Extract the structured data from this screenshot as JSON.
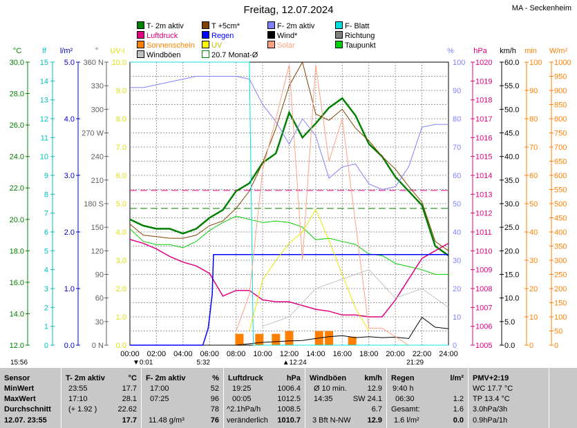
{
  "header": {
    "title": "Freitag, 12.07.2024",
    "station": "MA - Seckenheim"
  },
  "legend": [
    {
      "label": "T- 2m aktiv",
      "color": "#008000"
    },
    {
      "label": "T +5cm*",
      "color": "#804000"
    },
    {
      "label": "F- 2m aktiv",
      "color": "#8080ff"
    },
    {
      "label": "F- Blatt",
      "color": "#00e0e0"
    },
    {
      "label": "Luftdruck",
      "color": "#e00080"
    },
    {
      "label": "Regen",
      "color": "#0000ff"
    },
    {
      "label": "Wind*",
      "color": "#000000"
    },
    {
      "label": "Richtung",
      "color": "#808080"
    },
    {
      "label": "Sonnenschein",
      "color": "#ff8000"
    },
    {
      "label": "UV",
      "color": "#ffff00"
    },
    {
      "label": "Solar",
      "color": "#ffa080"
    },
    {
      "label": "Taupunkt",
      "color": "#00d000"
    },
    {
      "label": "Windböen",
      "color": "#c0c0c0"
    },
    {
      "label": "20.7 Monat-Ø",
      "color": "#008000"
    }
  ],
  "axes": {
    "temp": {
      "unit": "°C",
      "color": "#008000",
      "ticks": [
        "12.0",
        "14.0",
        "16.0",
        "18.0",
        "20.0",
        "22.0",
        "24.0",
        "26.0",
        "28.0",
        "30.0"
      ]
    },
    "leaf": {
      "unit": "lf",
      "color": "#00c0c0",
      "ticks": [
        "0",
        "1",
        "2",
        "3",
        "4",
        "5",
        "6",
        "7",
        "8",
        "9",
        "10",
        "11",
        "12",
        "13",
        "14",
        "15"
      ]
    },
    "rain": {
      "unit": "l/m²",
      "color": "#0000c0",
      "ticks": [
        "0.0",
        "1.0",
        "2.0",
        "3.0",
        "4.0",
        "5.0"
      ]
    },
    "dir": {
      "unit": "°",
      "color": "#606060",
      "ticks": [
        "0 N",
        "30",
        "60",
        "90",
        "120",
        "150",
        "180 S",
        "210",
        "240",
        "270 W",
        "300",
        "330",
        "360 N"
      ]
    },
    "uv": {
      "unit": "UV-I",
      "color": "#e0e000",
      "ticks": [
        "0.0",
        "1.0",
        "2.0",
        "3.0",
        "4.0",
        "5.0",
        "6.0",
        "7.0",
        "8.0",
        "9.0",
        "10.0"
      ]
    },
    "hum": {
      "unit": "%",
      "color": "#8080ff",
      "ticks": [
        "0",
        "10",
        "20",
        "30",
        "40",
        "50",
        "60",
        "70",
        "80",
        "90",
        "100"
      ]
    },
    "press": {
      "unit": "hPa",
      "color": "#e00080",
      "ticks": [
        "1005",
        "1006",
        "1007",
        "1008",
        "1009",
        "1010",
        "1011",
        "1012",
        "1013",
        "1014",
        "1015",
        "1016",
        "1017",
        "1018",
        "1019",
        "1020"
      ]
    },
    "wind": {
      "unit": "km/h",
      "color": "#000000",
      "ticks": [
        "0.0",
        "5.0",
        "10.0",
        "15.0",
        "20.0",
        "25.0",
        "30.0",
        "35.0",
        "40.0",
        "45.0",
        "50.0",
        "55.0",
        "60.0"
      ]
    },
    "sun": {
      "unit": "min",
      "color": "#ff8000",
      "ticks": [
        "0",
        "10",
        "20",
        "30",
        "40",
        "50",
        "60",
        "70",
        "80",
        "90",
        "100"
      ]
    },
    "solar": {
      "unit": "W/m²",
      "color": "#ff8000",
      "ticks": [
        "0",
        "50",
        "100",
        "150",
        "200",
        "250",
        "300",
        "350",
        "400",
        "450",
        "500",
        "550",
        "600",
        "650",
        "700",
        "750",
        "800",
        "850",
        "900",
        "950",
        "1000"
      ]
    },
    "time": [
      "00:00",
      "02:00",
      "04:00",
      "06:00",
      "08:00",
      "10:00",
      "12:00",
      "14:00",
      "16:00",
      "18:00",
      "20:00",
      "22:00",
      "24:00"
    ]
  },
  "events": {
    "sunrise": "5:32",
    "sunset": "21:29",
    "moonset": "0:01",
    "moonrise": "12:24",
    "moonset_prev": "15:56"
  },
  "chart_data": {
    "type": "line",
    "x_unit": "hour",
    "xlim": [
      0,
      24
    ],
    "series": [
      {
        "name": "T- 2m aktiv",
        "axis": "temp",
        "x": [
          0,
          1,
          2,
          3,
          4,
          5,
          6,
          7,
          8,
          9,
          10,
          11,
          12,
          13,
          14,
          15,
          16,
          17,
          18,
          19,
          20,
          21,
          22,
          23,
          24
        ],
        "values": [
          20.0,
          19.6,
          19.4,
          19.4,
          19.1,
          19.4,
          20.1,
          20.6,
          21.8,
          22.3,
          23.6,
          24.2,
          26.8,
          25.2,
          26.1,
          27.1,
          27.7,
          26.6,
          24.8,
          24.0,
          22.7,
          21.8,
          20.9,
          18.3,
          17.7
        ]
      },
      {
        "name": "T +5cm*",
        "axis": "temp",
        "x": [
          0,
          1,
          2,
          3,
          4,
          5,
          6,
          7,
          8,
          9,
          10,
          11,
          12,
          13,
          14,
          15,
          16,
          17,
          18,
          19,
          20,
          21,
          22,
          23,
          24
        ],
        "values": [
          19.7,
          19.0,
          18.9,
          18.8,
          18.8,
          19.0,
          19.6,
          19.9,
          20.7,
          21.8,
          23.6,
          25.8,
          28.5,
          30.0,
          26.7,
          26.3,
          27.0,
          25.8,
          25.0,
          24.0,
          23.2,
          22.1,
          21.1,
          18.6,
          18.0
        ]
      },
      {
        "name": "Taupunkt",
        "axis": "temp",
        "x": [
          0,
          1,
          2,
          3,
          4,
          5,
          6,
          7,
          8,
          9,
          10,
          11,
          12,
          13,
          14,
          15,
          16,
          17,
          18,
          19,
          20,
          21,
          22,
          23,
          24
        ],
        "values": [
          19.4,
          18.6,
          18.4,
          18.4,
          18.2,
          18.6,
          19.3,
          19.8,
          20.2,
          20.0,
          19.8,
          19.9,
          19.8,
          19.5,
          18.7,
          18.8,
          18.6,
          18.4,
          17.8,
          17.7,
          17.2,
          17.0,
          16.8,
          16.5,
          16.5
        ]
      },
      {
        "name": "F- 2m aktiv",
        "axis": "hum",
        "x": [
          0,
          1,
          2,
          3,
          4,
          5,
          6,
          7,
          8,
          9,
          10,
          11,
          12,
          13,
          14,
          15,
          16,
          17,
          18,
          19,
          20,
          21,
          22,
          23,
          24
        ],
        "values": [
          91,
          91,
          92,
          93,
          94,
          95,
          95,
          95,
          95,
          94,
          85,
          79,
          71,
          80,
          74,
          59,
          63,
          64,
          57,
          55,
          56,
          63,
          77,
          78,
          78
        ]
      },
      {
        "name": "Luftdruck",
        "axis": "press",
        "x": [
          0,
          1,
          2,
          3,
          4,
          5,
          6,
          7,
          8,
          9,
          10,
          11,
          12,
          13,
          14,
          15,
          16,
          17,
          18,
          19,
          20,
          21,
          22,
          23,
          24
        ],
        "values": [
          1010.6,
          1010.4,
          1010.1,
          1009.7,
          1009.4,
          1009.2,
          1008.8,
          1007.6,
          1007.9,
          1007.9,
          1007.4,
          1007.3,
          1007.3,
          1007.1,
          1006.9,
          1006.8,
          1006.6,
          1006.6,
          1006.5,
          1006.5,
          1007.4,
          1008.5,
          1009.6,
          1010.0,
          1010.4
        ]
      },
      {
        "name": "Wind*",
        "axis": "wind",
        "x": [
          0,
          4,
          8,
          10,
          12,
          13,
          14,
          15,
          16,
          17,
          18,
          19,
          20,
          21,
          22,
          23,
          24
        ],
        "values": [
          0,
          0,
          0,
          0.6,
          0.9,
          1.0,
          1.4,
          1.8,
          2.0,
          1.6,
          1.8,
          1.6,
          1.7,
          1.4,
          5.9,
          3.8,
          3.5
        ]
      },
      {
        "name": "Regen",
        "axis": "rain",
        "x": [
          0,
          5.5,
          5.9,
          6.0,
          6.2,
          6.3,
          24
        ],
        "values": [
          0,
          0,
          0.3,
          0.5,
          0.9,
          1.6,
          1.6
        ]
      },
      {
        "name": "F- Blatt",
        "axis": "leaf",
        "x": [
          0,
          9,
          9.3,
          24
        ],
        "values": [
          15,
          15,
          0,
          0
        ]
      },
      {
        "name": "Solar",
        "axis": "solar",
        "x": [
          8,
          9,
          10,
          11,
          12,
          13,
          14,
          15,
          16,
          17,
          18,
          19,
          20,
          21
        ],
        "values": [
          50,
          180,
          620,
          800,
          990,
          300,
          990,
          650,
          800,
          430,
          60,
          60,
          30,
          0
        ]
      },
      {
        "name": "UV",
        "axis": "uv",
        "x": [
          9,
          10,
          11,
          12,
          13,
          14,
          15,
          16,
          17,
          18
        ],
        "values": [
          0.5,
          2.3,
          3.0,
          3.6,
          4.0,
          4.8,
          3.7,
          2.5,
          1.3,
          0.5
        ]
      },
      {
        "name": "Windböen",
        "axis": "wind",
        "x": [
          10,
          12,
          14,
          16,
          18,
          20,
          22,
          24
        ],
        "values": [
          4,
          6,
          12,
          14,
          16,
          10,
          12,
          8
        ]
      }
    ],
    "reference_lines": [
      {
        "name": "20.7 Monat-Ø",
        "axis": "temp",
        "value": 20.7
      },
      {
        "name": "Luftdruck-Ø",
        "axis": "press",
        "value": 1013.2
      }
    ],
    "sunshine_minutes": [
      {
        "hour": 8.25,
        "minutes": 4
      },
      {
        "hour": 9.75,
        "minutes": 4
      },
      {
        "hour": 11,
        "minutes": 4
      },
      {
        "hour": 12,
        "minutes": 5
      },
      {
        "hour": 14.25,
        "minutes": 5
      },
      {
        "hour": 15,
        "minutes": 5
      },
      {
        "hour": 16.75,
        "minutes": 3
      }
    ],
    "grid": true
  },
  "table": {
    "sensor": {
      "h": "Sensor",
      "rows": [
        "MinWert",
        "MaxWert",
        "Durchschnitt",
        "12.07.  23:55"
      ]
    },
    "temp": {
      "h": "T- 2m aktiv",
      "u": "°C",
      "rows": [
        [
          "23:55",
          "17.7"
        ],
        [
          "17:10",
          "28.1"
        ],
        [
          "(+ 1.92 )",
          "22.62"
        ],
        [
          "",
          "17.7"
        ]
      ]
    },
    "hum": {
      "h": "F- 2m aktiv",
      "u": "%",
      "rows": [
        [
          "17:00",
          "52"
        ],
        [
          "07:25",
          "96"
        ],
        [
          "",
          "78"
        ],
        [
          "11.48 g/m³",
          "76"
        ]
      ]
    },
    "press": {
      "h": "Luftdruck",
      "u": "hPa",
      "rows": [
        [
          "19:25",
          "1006.4"
        ],
        [
          "00:05",
          "1012.5"
        ],
        [
          "^2.1hPa/h",
          "1008.5"
        ],
        [
          "veränderlich",
          "1010.7"
        ]
      ]
    },
    "wind": {
      "h": "Windböen",
      "u": "km/h",
      "rows": [
        [
          "Ø 10 min.",
          "12.9"
        ],
        [
          "14:35",
          "SW 24.1"
        ],
        [
          "",
          "6.7"
        ],
        [
          "3 Bft N-NW",
          "12.9"
        ]
      ]
    },
    "rain": {
      "h": "Regen",
      "u": "l/m²",
      "rows": [
        [
          "9:40 h",
          ""
        ],
        [
          "06:30",
          "1.2"
        ],
        [
          "Gesamt:",
          "1.6"
        ],
        [
          "1.6 l/m²",
          "0.0"
        ]
      ]
    },
    "pmv": {
      "h": "PMV+2:19",
      "rows": [
        "WC 17.7 °C",
        "TP 13.4 °C",
        "3.0hPa/3h",
        "0.9hPa/1h"
      ]
    }
  }
}
